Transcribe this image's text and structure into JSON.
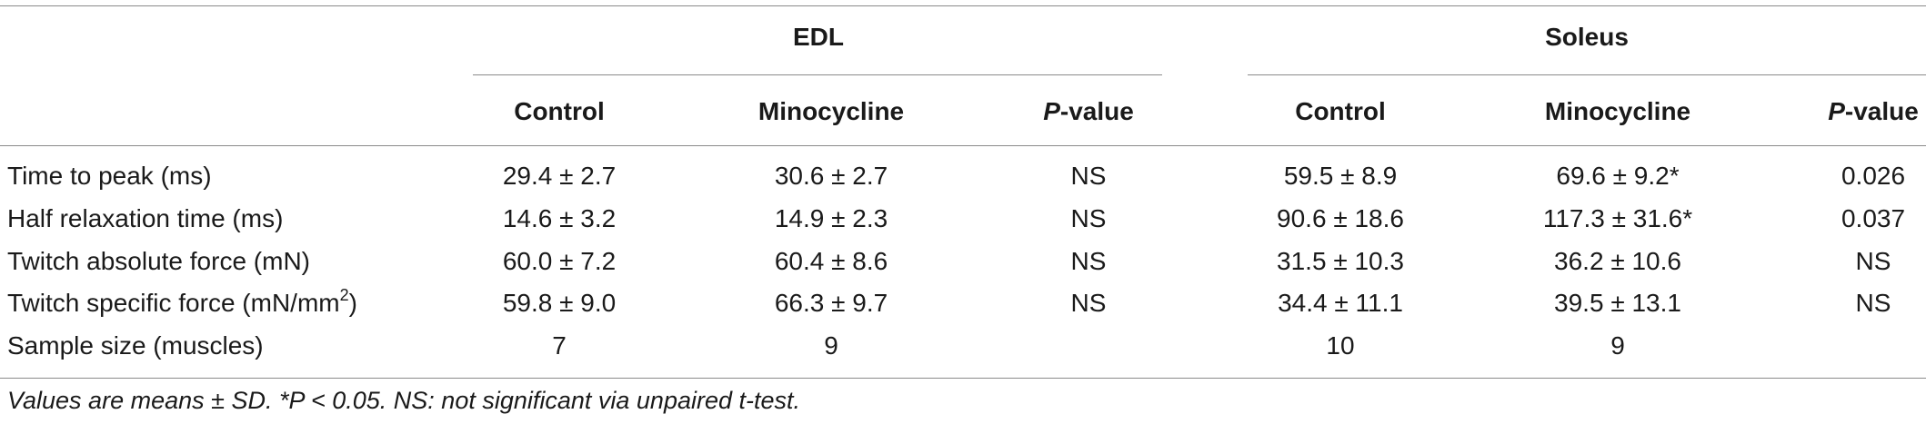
{
  "groups": {
    "edl": "EDL",
    "soleus": "Soleus"
  },
  "columns": {
    "control": "Control",
    "minocycline": "Minocycline",
    "p_italic": "P",
    "p_rest": "-value"
  },
  "rows": [
    {
      "label": "Time to peak (ms)",
      "edl_control": "29.4 ± 2.7",
      "edl_mino": "30.6 ± 2.7",
      "edl_p": "NS",
      "sol_control": "59.5 ± 8.9",
      "sol_mino": "69.6 ± 9.2*",
      "sol_p": "0.026"
    },
    {
      "label": "Half relaxation time (ms)",
      "edl_control": "14.6 ± 3.2",
      "edl_mino": "14.9 ± 2.3",
      "edl_p": "NS",
      "sol_control": "90.6 ± 18.6",
      "sol_mino": "117.3 ± 31.6*",
      "sol_p": "0.037"
    },
    {
      "label": "Twitch absolute force (mN)",
      "edl_control": "60.0 ± 7.2",
      "edl_mino": "60.4 ± 8.6",
      "edl_p": "NS",
      "sol_control": "31.5 ± 10.3",
      "sol_mino": "36.2 ± 10.6",
      "sol_p": "NS"
    },
    {
      "label_main": "Twitch specific force (mN/mm",
      "label_sup": "2",
      "label_end": ")",
      "edl_control": "59.8 ± 9.0",
      "edl_mino": "66.3 ± 9.7",
      "edl_p": "NS",
      "sol_control": "34.4 ± 11.1",
      "sol_mino": "39.5 ± 13.1",
      "sol_p": "NS"
    },
    {
      "label": "Sample size (muscles)",
      "edl_control": "7",
      "edl_mino": "9",
      "edl_p": "",
      "sol_control": "10",
      "sol_mino": "9",
      "sol_p": ""
    }
  ],
  "footnote": "Values are means ± SD. *P < 0.05. NS: not significant via unpaired t-test."
}
